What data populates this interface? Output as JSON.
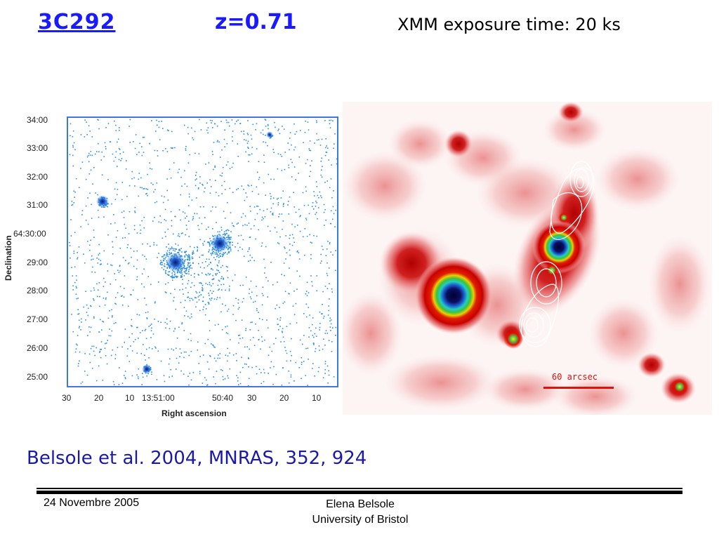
{
  "header": {
    "source_name": "3C292",
    "redshift": "z=0.71",
    "exposure": "XMM exposure time: 20 ks"
  },
  "xray_panel": {
    "ylabel": "Declination",
    "xlabel": "Right ascension",
    "y_ticks": [
      "34:00",
      "33:00",
      "32:00",
      "31:00",
      "64:30:00",
      "29:00",
      "28:00",
      "27:00",
      "26:00",
      "25:00"
    ],
    "x_ticks": [
      "30",
      "20",
      "10",
      "13:51:00",
      "50:40",
      "30",
      "20",
      "10"
    ],
    "point_color": "#2b8fe0"
  },
  "contour_panel": {
    "scale_bar_label": "60 arcsec",
    "scale_bar_color": "#e01010"
  },
  "citation": "Belsole et al. 2004, MNRAS, 352, 924",
  "footer": {
    "date": "24 Novembre 2005",
    "author": "Elena Belsole",
    "institution": "University of Bristol"
  }
}
